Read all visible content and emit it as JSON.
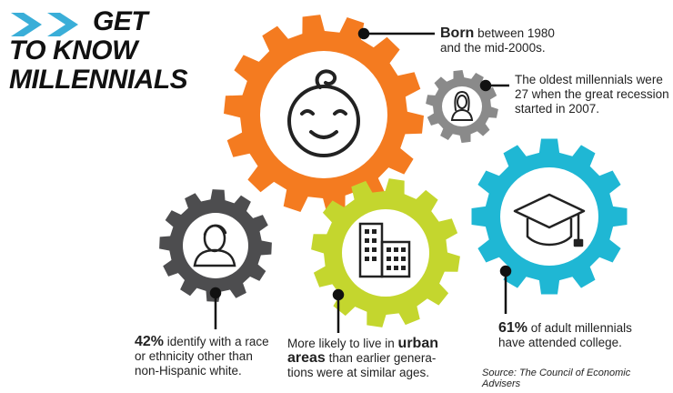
{
  "header": {
    "title_line1": "GET",
    "title_line2": "TO KNOW",
    "title_line3": "MILLENNIALS"
  },
  "facts": {
    "born": {
      "highlight": "Born",
      "text_a": " between 1980",
      "text_b": "and the mid-2000s."
    },
    "recession": {
      "line1": "The oldest millennials were",
      "line2": "27 when the great recession",
      "line3": "started in 2007."
    },
    "ethnicity": {
      "highlight": "42%",
      "line1": " identify with a race",
      "line2": "or ethnicity other than",
      "line3": "non-Hispanic white."
    },
    "urban": {
      "line1a": "More likely to live in ",
      "highlight1": "urban",
      "highlight2": "areas",
      "line2b": " than earlier genera-",
      "line3": "tions were at similar ages."
    },
    "college": {
      "highlight": "61%",
      "line1": " of adult millennials",
      "line2": "have attended college."
    }
  },
  "source": "Source: The Council of Economic Advisers",
  "colors": {
    "orange": "#f47b20",
    "gray_small": "#8a8a8a",
    "dark_gray": "#4d4d4f",
    "lime": "#c4d62e",
    "cyan": "#1fb7d4",
    "chevron": "#3aaed8"
  },
  "icons": [
    "baby-face-icon",
    "woman-icon",
    "man-icon",
    "buildings-icon",
    "graduation-cap-icon"
  ]
}
